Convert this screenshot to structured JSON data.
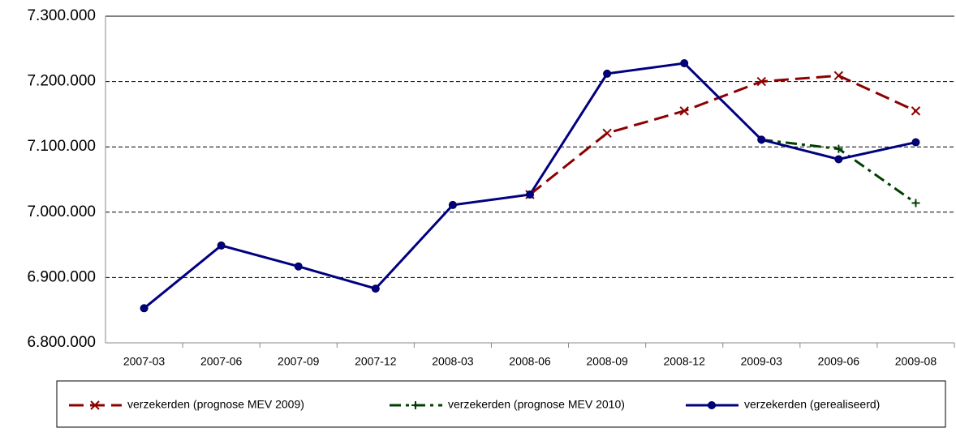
{
  "chart_data": {
    "type": "line",
    "categories": [
      "2007-03",
      "2007-06",
      "2007-09",
      "2007-12",
      "2008-03",
      "2008-06",
      "2008-09",
      "2008-12",
      "2009-03",
      "2009-06",
      "2009-08"
    ],
    "series": [
      {
        "name": "verzekerden (prognose MEV 2009)",
        "color": "#8b0000",
        "marker": "x",
        "dash": "dashed",
        "values": [
          null,
          null,
          null,
          null,
          null,
          7027000,
          7121000,
          7155000,
          7200000,
          7209000,
          7155000
        ]
      },
      {
        "name": "verzekerden (prognose MEV 2010)",
        "color": "#004000",
        "marker": "+",
        "dash": "dashdot",
        "values": [
          null,
          null,
          null,
          null,
          null,
          null,
          null,
          null,
          7111000,
          7097000,
          7014000
        ]
      },
      {
        "name": "verzekerden (gerealiseerd)",
        "color": "#000080",
        "marker": "circle",
        "dash": "solid",
        "values": [
          6853000,
          6949000,
          6917000,
          6883000,
          7011000,
          7027000,
          7212000,
          7228000,
          7111000,
          7081000,
          7107000
        ]
      }
    ],
    "ylim": [
      6800000,
      7300000
    ],
    "yticks": [
      {
        "value": 6800000,
        "label": "6.800.000"
      },
      {
        "value": 6900000,
        "label": "6.900.000"
      },
      {
        "value": 7000000,
        "label": "7.000.000"
      },
      {
        "value": 7100000,
        "label": "7.100.000"
      },
      {
        "value": 7200000,
        "label": "7.200.000"
      },
      {
        "value": 7300000,
        "label": "7.300.000"
      }
    ],
    "grid": true,
    "legend": "bottom"
  }
}
